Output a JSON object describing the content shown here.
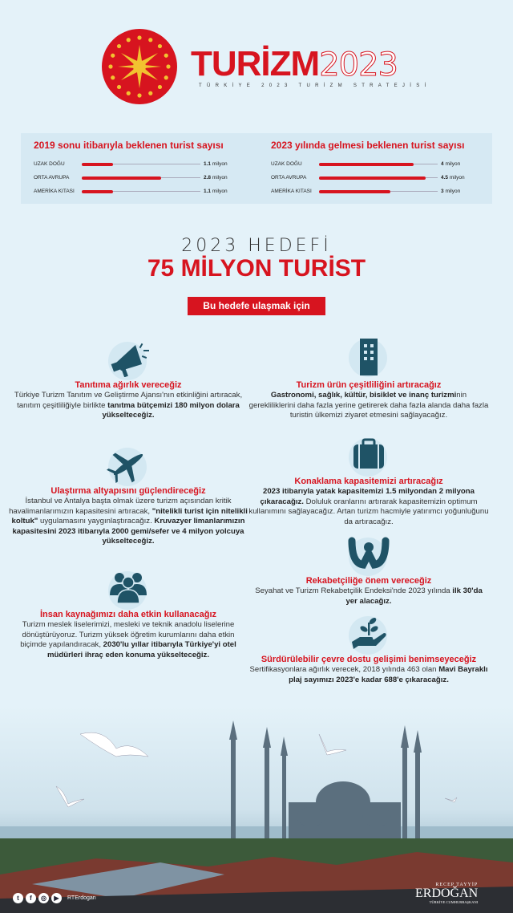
{
  "header": {
    "logo_word": "TURİZM",
    "logo_year": "2023",
    "subtitle": "TÜRKİYE 2023 TURİZM STRATEJİSİ",
    "seal": "Cumhurbaşkanlığı forsu"
  },
  "stats": [
    {
      "title": "2019 sonu itibarıyla beklenen turist sayısı",
      "max": 4.2,
      "rows": [
        {
          "label": "UZAK DOĞU",
          "value": 1.1,
          "display": "1.1",
          "unit": "milyon"
        },
        {
          "label": "ORTA AVRUPA",
          "value": 2.8,
          "display": "2.8",
          "unit": "milyon"
        },
        {
          "label": "AMERİKA KITASI",
          "value": 1.1,
          "display": "1.1",
          "unit": "milyon"
        }
      ]
    },
    {
      "title": "2023 yılında gelmesi beklenen turist sayısı",
      "max": 5,
      "rows": [
        {
          "label": "UZAK DOĞU",
          "value": 4,
          "display": "4",
          "unit": "milyon"
        },
        {
          "label": "ORTA AVRUPA",
          "value": 4.5,
          "display": "4.5",
          "unit": "milyon"
        },
        {
          "label": "AMERİKA KITASI",
          "value": 3,
          "display": "3",
          "unit": "milyon"
        }
      ]
    }
  ],
  "goal": {
    "heading": "2023 HEDEFİ",
    "target": "75 MİLYON TURİST",
    "button": "Bu hedefe ulaşmak için"
  },
  "items": [
    {
      "title": "Tanıtıma ağırlık vereceğiz",
      "p1": "Türkiye Turizm Tanıtım ve Geliştirme Ajansı'nın etkinliğini artıracak, tanıtım çeşitliliğiyle birlikte ",
      "b1": "tanıtma bütçemizi 180 milyon dolara yükselteceğiz."
    },
    {
      "title": "Turizm ürün çeşitliliğini artıracağız",
      "b1": "Gastronomi, sağlık, kültür, bisiklet ve inanç turizmi",
      "p1": "nin gerekliliklerini daha fazla yerine getirerek daha fazla alanda daha fazla turistin ülkemizi ziyaret etmesini sağlayacağız."
    },
    {
      "title": "Ulaştırma altyapısını güçlendireceğiz",
      "p1": "İstanbul ve Antalya başta olmak üzere turizm açısından kritik havalimanlarımızın kapasitesini artıracak, ",
      "b1": "\"nitelikli turist için nitelikli koltuk\"",
      "p2": " uygulamasını yaygınlaştıracağız. ",
      "b2": "Kruvazyer limanlarımızın kapasitesini 2023 itibarıyla 2000 gemi/sefer ve 4 milyon yolcuya yükselteceğiz."
    },
    {
      "title": "Konaklama kapasitemizi artıracağız",
      "b1": "2023 itibarıyla yatak kapasitemizi 1.5 milyondan 2 milyona çıkaracağız.",
      "p1": " Doluluk oranlarını artırarak kapasitemizin optimum kullanımını sağlayacağız. Artan turizm hacmiyle yatırımcı yoğunluğunu da artıracağız."
    },
    {
      "title": "İnsan kaynağımızı daha etkin kullanacağız",
      "p1": "Turizm meslek liselerimizi, mesleki ve teknik anadolu liselerine dönüştürüyoruz. Turizm yüksek öğretim kurumlarını daha etkin biçimde yapılandıracak, ",
      "b1": "2030'lu yıllar itibarıyla Türkiye'yi otel müdürleri ihraç eden konuma yükselteceğiz."
    },
    {
      "title": "Rekabetçiliğe önem vereceğiz",
      "p1": "Seyahat ve Turizm Rekabetçilik Endeksi'nde 2023 yılında ",
      "b1": "ilk 30'da yer alacağız."
    },
    {
      "title": "Sürdürülebilir çevre dostu gelişimi benimseyeceğiz",
      "p1": "Sertifikasyonlara ağırlık verecek, 2018 yılında 463 olan ",
      "b1": "Mavi Bayraklı plaj sayımızı 2023'e kadar 688'e çıkaracağız."
    }
  ],
  "footer": {
    "handle": "RTErdogan",
    "sig_top": "RECEP TAYYİP",
    "sig_name": "ERDOĞAN",
    "sig_sub": "TÜRKİYE CUMHURBAŞKANI"
  },
  "colors": {
    "accent": "#d7141f",
    "icon": "#1f5366",
    "background": "#e4f2f9"
  }
}
